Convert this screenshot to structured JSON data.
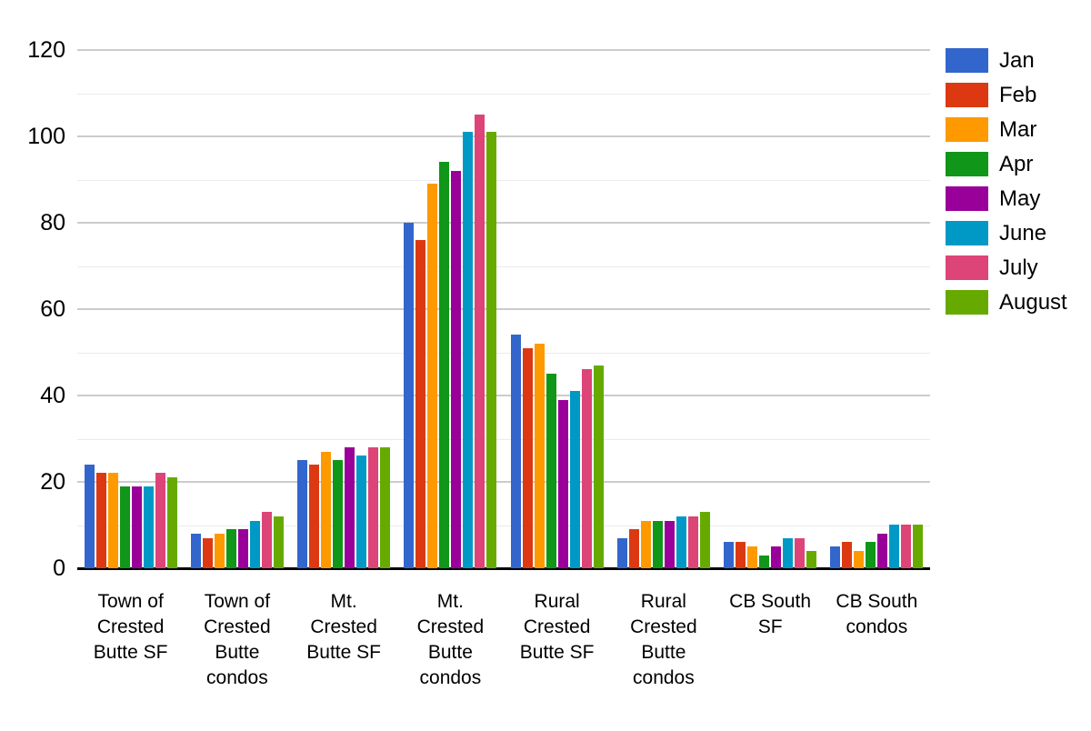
{
  "chart_data": {
    "type": "bar",
    "title": "",
    "xlabel": "",
    "ylabel": "",
    "ylim": [
      0,
      120
    ],
    "y_ticks": [
      0,
      20,
      40,
      60,
      80,
      100,
      120
    ],
    "minor_grid_step": 10,
    "major_grid_step": 20,
    "grid": true,
    "legend_position": "right",
    "categories": [
      "Town of Crested Butte SF",
      "Town of Crested Butte condos",
      "Mt. Crested Butte SF",
      "Mt. Crested Butte condos",
      "Rural Crested Butte SF",
      "Rural Crested Butte condos",
      "CB South SF",
      "CB South condos"
    ],
    "category_label_lines": [
      [
        "Town of",
        "Crested",
        "Butte SF"
      ],
      [
        "Town of",
        "Crested",
        "Butte",
        "condos"
      ],
      [
        "Mt.",
        "Crested",
        "Butte SF"
      ],
      [
        "Mt.",
        "Crested",
        "Butte",
        "condos"
      ],
      [
        "Rural",
        "Crested",
        "Butte SF"
      ],
      [
        "Rural",
        "Crested",
        "Butte",
        "condos"
      ],
      [
        "CB South",
        "SF"
      ],
      [
        "CB South",
        "condos"
      ]
    ],
    "series": [
      {
        "name": "Jan",
        "color": "#3366CC",
        "values": [
          24,
          8,
          25,
          80,
          54,
          7,
          6,
          5
        ]
      },
      {
        "name": "Feb",
        "color": "#DC3912",
        "values": [
          22,
          7,
          24,
          76,
          51,
          9,
          6,
          6
        ]
      },
      {
        "name": "Mar",
        "color": "#FF9900",
        "values": [
          22,
          8,
          27,
          89,
          52,
          11,
          5,
          4
        ]
      },
      {
        "name": "Apr",
        "color": "#109618",
        "values": [
          19,
          9,
          25,
          94,
          45,
          11,
          3,
          6
        ]
      },
      {
        "name": "May",
        "color": "#990099",
        "values": [
          19,
          9,
          28,
          92,
          39,
          11,
          5,
          8
        ]
      },
      {
        "name": "June",
        "color": "#0099C6",
        "values": [
          19,
          11,
          26,
          101,
          41,
          12,
          7,
          10
        ]
      },
      {
        "name": "July",
        "color": "#DD4477",
        "values": [
          22,
          13,
          28,
          105,
          46,
          12,
          7,
          10
        ]
      },
      {
        "name": "August",
        "color": "#66AA00",
        "values": [
          21,
          12,
          28,
          101,
          47,
          13,
          4,
          10
        ]
      }
    ]
  },
  "style_colors": {
    "major_gridline": "#cccccc",
    "minor_gridline": "#ebebeb",
    "axis_line": "#000000",
    "text": "#000000",
    "background": "#ffffff"
  }
}
